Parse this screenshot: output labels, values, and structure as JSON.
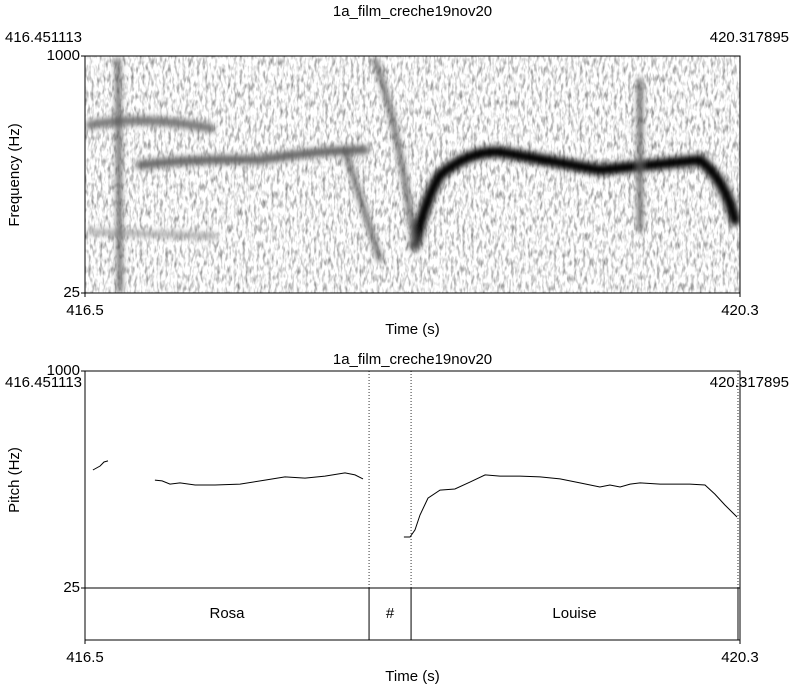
{
  "chart_data": [
    {
      "type": "spectrogram",
      "title": "1a_film_creche19nov20",
      "xlabel": "Time (s)",
      "ylabel": "Frequency (Hz)",
      "xlim": [
        416.451113,
        420.317895
      ],
      "xticks": [
        {
          "value": 416.451113,
          "label": "416.5"
        },
        {
          "value": 420.317895,
          "label": "420.3"
        }
      ],
      "ylim": [
        25,
        1000
      ],
      "yticks": [
        25,
        1000
      ]
    },
    {
      "type": "line",
      "title": "1a_film_creche19nov20",
      "xlabel": "Time (s)",
      "ylabel": "Pitch (Hz)",
      "xlim": [
        416.451113,
        420.317895
      ],
      "xticks": [
        {
          "value": 416.451113,
          "label": "416.5"
        },
        {
          "value": 420.317895,
          "label": "420.3"
        }
      ],
      "ylim": [
        25,
        1000
      ],
      "yticks": [
        25,
        1000
      ],
      "color": "#000000",
      "x": [
        416.498,
        416.54,
        416.563,
        416.587,
        null,
        416.864,
        416.906,
        416.953,
        417.012,
        417.101,
        417.219,
        417.366,
        417.514,
        417.632,
        417.75,
        417.868,
        417.986,
        418.045,
        418.092,
        null,
        418.334,
        418.37,
        418.399,
        418.429,
        418.476,
        418.547,
        418.635,
        418.724,
        418.813,
        418.901,
        419.019,
        419.137,
        419.255,
        419.373,
        419.491,
        419.55,
        419.61,
        419.669,
        419.728,
        419.846,
        420.023,
        420.111,
        420.17,
        420.229,
        420.3
      ],
      "values": [
        555,
        573,
        591,
        596,
        null,
        510,
        506,
        492,
        497,
        488,
        488,
        492,
        510,
        524,
        519,
        528,
        542,
        533,
        515,
        null,
        254,
        254,
        286,
        353,
        429,
        465,
        470,
        501,
        533,
        528,
        528,
        524,
        515,
        497,
        479,
        488,
        479,
        492,
        497,
        492,
        492,
        488,
        447,
        398,
        344
      ],
      "intervals": [
        {
          "text": "Rosa",
          "start": 416.451113,
          "end": 418.128
        },
        {
          "text": "#",
          "start": 418.128,
          "end": 418.376
        },
        {
          "text": "Louise",
          "start": 418.376,
          "end": 420.306
        }
      ]
    }
  ]
}
